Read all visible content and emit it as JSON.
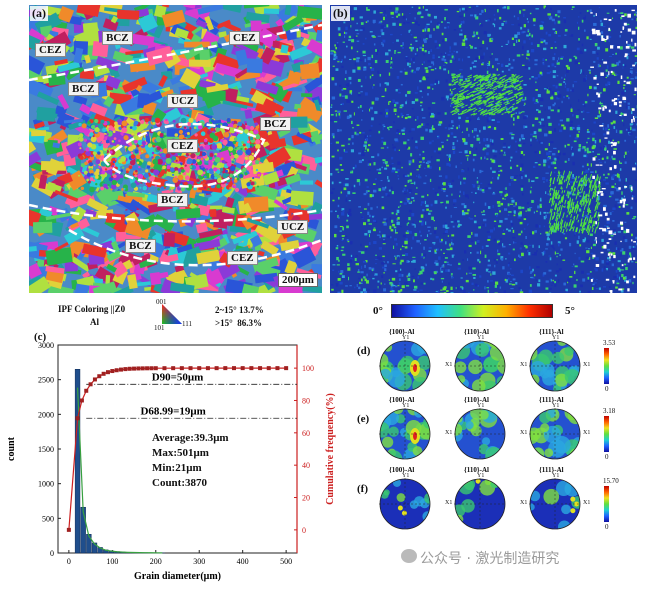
{
  "panels": {
    "a": {
      "tag": "(a)",
      "zones": [
        {
          "label": "CEZ"
        },
        {
          "label": "BCZ"
        },
        {
          "label": "CEZ"
        },
        {
          "label": "BCZ"
        },
        {
          "label": "UCZ"
        },
        {
          "label": "BCZ"
        },
        {
          "label": "CEZ"
        },
        {
          "label": "BCZ"
        },
        {
          "label": "UCZ"
        },
        {
          "label": "BCZ"
        },
        {
          "label": "CEZ"
        }
      ],
      "scale_bar": "200μm"
    },
    "b": {
      "tag": "(b)"
    },
    "legend_ipf": {
      "title": "IPF Coloring ||Z0",
      "phase": "Al",
      "tri_top": "001",
      "tri_left": "101",
      "tri_right": "111",
      "stats": [
        {
          "label": "2~15°",
          "value": "13.7%"
        },
        {
          "label": ">15°",
          "value": "86.3%"
        }
      ]
    },
    "legend_kam": {
      "min": "0°",
      "max": "5°"
    },
    "c": {
      "tag": "(c)",
      "annotations": {
        "d90": "D90=50μm",
        "d6899": "D68.99=19μm",
        "average": "Average:39.3μm",
        "max": "Max:501μm",
        "min": "Min:21μm",
        "count": "Count:3870"
      }
    },
    "pole_figures": {
      "columns": [
        "{100}-Al",
        "{110}-Al",
        "{111}-Al"
      ],
      "y_axis": "Y1",
      "x_axis": "X1",
      "rows": [
        {
          "tag": "(d)",
          "cb_max": "3.53",
          "cb_min": "0"
        },
        {
          "tag": "(e)",
          "cb_max": "3.18",
          "cb_min": "0"
        },
        {
          "tag": "(f)",
          "cb_max": "15.70",
          "cb_min": "0"
        }
      ]
    }
  },
  "watermark": "公众号 · 激光制造研究",
  "chart_data": {
    "type": "bar",
    "xlabel": "Grain diameter(μm)",
    "ylabel": "count",
    "y2label": "Cumulative frequency(%)",
    "xlim": [
      -25,
      525
    ],
    "ylim": [
      0,
      3000
    ],
    "y2lim": [
      -14.3,
      114.3
    ],
    "xticks": [
      0,
      100,
      200,
      300,
      400,
      500
    ],
    "yticks": [
      0,
      500,
      1000,
      1500,
      2000,
      2500,
      3000
    ],
    "y2ticks": [
      0,
      20,
      40,
      60,
      80,
      100
    ],
    "bars": {
      "x": [
        20,
        33,
        46,
        59,
        72,
        85,
        98,
        111,
        124,
        137,
        150,
        163,
        176,
        189,
        202,
        215
      ],
      "values": [
        2650,
        660,
        270,
        145,
        80,
        45,
        30,
        20,
        14,
        10,
        8,
        6,
        5,
        4,
        3,
        2
      ]
    },
    "cumulative": {
      "x": [
        0,
        20,
        30,
        40,
        50,
        60,
        70,
        80,
        90,
        100,
        110,
        120,
        130,
        140,
        150,
        160,
        170,
        180,
        190,
        200,
        220,
        240,
        260,
        280,
        300,
        320,
        340,
        360,
        380,
        400,
        420,
        440,
        460,
        480,
        500
      ],
      "values": [
        0,
        68.99,
        80,
        86,
        90,
        93,
        95,
        96.5,
        97.5,
        98.2,
        98.7,
        99.1,
        99.4,
        99.6,
        99.7,
        99.8,
        99.85,
        99.9,
        99.92,
        99.95,
        99.96,
        99.97,
        99.98,
        99.98,
        99.99,
        99.99,
        99.99,
        100,
        100,
        100,
        100,
        100,
        100,
        100,
        100
      ]
    },
    "hlines": [
      90,
      68.99
    ]
  },
  "colors": {
    "bar": "#1f4e8c",
    "cumulative": "#cc1f1f",
    "kam_background": "#1d3aa8"
  }
}
